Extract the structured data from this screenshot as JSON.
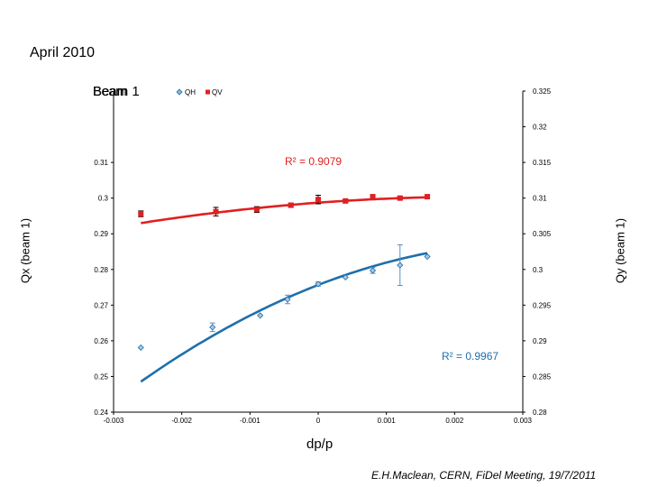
{
  "page": {
    "title": "April 2010",
    "credit": "E.H.Maclean, CERN, FiDel Meeting, 19/7/2011"
  },
  "chart_data": {
    "type": "scatter",
    "title": "Beam 1",
    "title_overlap": "Beam",
    "xlabel": "dp/p",
    "ylabel_left": "Qx (beam 1)",
    "ylabel_right": "Qy (beam 1)",
    "xlim": [
      -0.003,
      0.003
    ],
    "ylim_left": [
      0.24,
      0.33
    ],
    "ylim_right": [
      0.28,
      0.325
    ],
    "x_ticks": [
      -0.003,
      -0.002,
      -0.001,
      0,
      0.001,
      0.002,
      0.003
    ],
    "x_tick_labels": [
      "-0.003",
      "-0.002",
      "-0.001",
      "0",
      "0.001",
      "0.002",
      "0.003"
    ],
    "y_left_ticks": [
      0.24,
      0.25,
      0.26,
      0.27,
      0.28,
      0.29,
      0.3,
      0.31
    ],
    "y_left_tick_labels": [
      "0.24",
      "0.25",
      "0.26",
      "0.27",
      "0.28",
      "0.29",
      "0.3",
      "0.31"
    ],
    "y_right_ticks": [
      0.28,
      0.285,
      0.29,
      0.295,
      0.3,
      0.305,
      0.31,
      0.315,
      0.32,
      0.325
    ],
    "y_right_tick_labels": [
      "0.28",
      "0.285",
      "0.29",
      "0.295",
      "0.3",
      "0.305",
      "0.31",
      "0.315",
      "0.32",
      "0.325"
    ],
    "legend": [
      "QH",
      "QV"
    ],
    "legend_position": "top",
    "series": [
      {
        "name": "QH",
        "axis": "left",
        "color": "#1f6fab",
        "marker": "diamond",
        "x": [
          -0.0026,
          -0.00155,
          -0.00085,
          -0.00045,
          0.0,
          0.0004,
          0.0008,
          0.0012,
          0.0016
        ],
        "y": [
          0.2581,
          0.2638,
          0.2671,
          0.2716,
          0.2759,
          0.2778,
          0.2797,
          0.2812,
          0.2836
        ],
        "err": [
          0,
          0.0012,
          0,
          0.0012,
          0.0006,
          0,
          0.0008,
          0.0057,
          0
        ],
        "fit": {
          "c0": 0.27565,
          "c1": 7.425,
          "c2": -1155,
          "r2_label": "R² = 0.9967"
        }
      },
      {
        "name": "QV",
        "axis": "right",
        "color": "#e02020",
        "marker": "square",
        "x": [
          -0.0026,
          -0.0015,
          -0.0009,
          -0.0004,
          0.0,
          0.0004,
          0.0008,
          0.0012,
          0.0016
        ],
        "y": [
          0.3078,
          0.3081,
          0.3084,
          0.309,
          0.3098,
          0.3096,
          0.3102,
          0.31,
          0.3102
        ],
        "err": [
          0.0004,
          0.0006,
          0.0004,
          0.0003,
          0.0006,
          0.0002,
          0.0002,
          0.0002,
          0.0002
        ],
        "fit": {
          "c0": 0.30936,
          "c1": 0.7107,
          "c2": -150,
          "r2_label": "R² = 0.9079"
        }
      }
    ]
  }
}
